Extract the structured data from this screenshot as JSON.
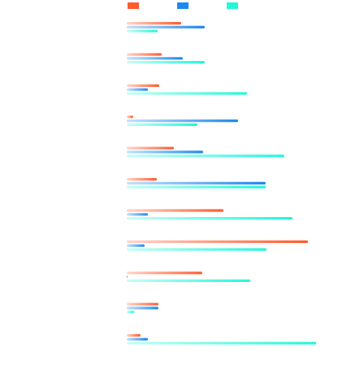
{
  "chart_data": {
    "type": "bar",
    "orientation": "horizontal",
    "categories": [
      "",
      "",
      "",
      "",
      "",
      "",
      "",
      "",
      "",
      "",
      ""
    ],
    "series": [
      {
        "color": "#FF5B2E",
        "values": [
          67,
          43,
          40,
          8,
          58,
          37,
          119,
          223,
          93,
          39,
          17
        ]
      },
      {
        "color": "#1E88F0",
        "values": [
          96,
          69,
          26,
          137,
          94,
          171,
          26,
          22,
          1,
          39,
          26
        ]
      },
      {
        "color": "#22F7D9",
        "values": [
          38,
          96,
          148,
          87,
          194,
          171,
          204,
          172,
          152,
          9,
          233
        ]
      }
    ],
    "xlim": [
      0,
      240
    ],
    "grid": false,
    "legend_position": "top"
  }
}
